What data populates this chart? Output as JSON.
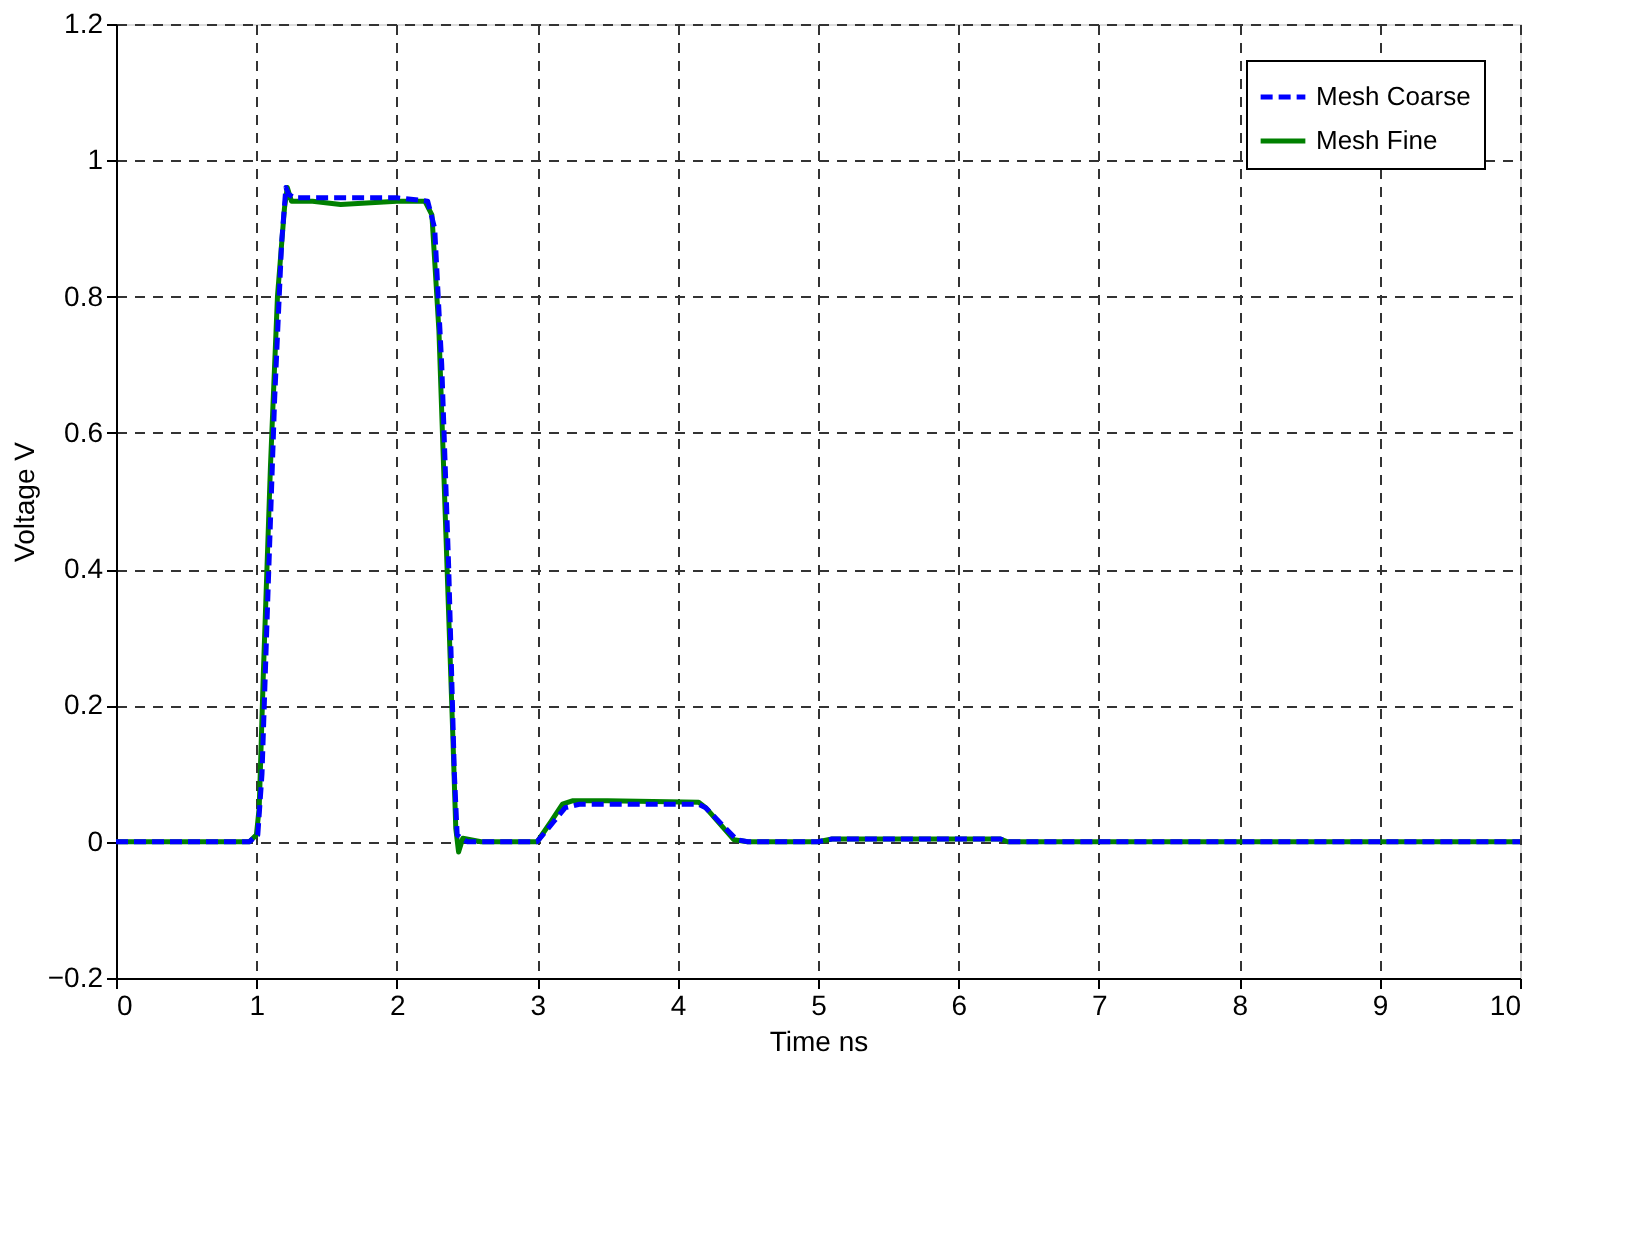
{
  "chart_data": {
    "type": "line",
    "xlabel": "Time ns",
    "ylabel": "Voltage V",
    "xlim": [
      0,
      10
    ],
    "ylim": [
      -0.2,
      1.2
    ],
    "xticks": [
      0,
      1,
      2,
      3,
      4,
      5,
      6,
      7,
      8,
      9,
      10
    ],
    "yticks": [
      -0.2,
      0,
      0.2,
      0.4,
      0.6,
      0.8,
      1,
      1.2
    ],
    "grid": true,
    "legend": "top right",
    "series": [
      {
        "name": "Mesh Coarse",
        "color": "#0000ff",
        "line_style": "dashed",
        "x": [
          0,
          0.95,
          1.01,
          1.04,
          1.08,
          1.13,
          1.18,
          1.21,
          1.23,
          1.27,
          1.5,
          2.0,
          2.22,
          2.27,
          2.32,
          2.37,
          2.41,
          2.43,
          2.46,
          2.5,
          3.0,
          3.12,
          3.2,
          3.3,
          3.6,
          4.15,
          4.2,
          4.42,
          4.5,
          5.0,
          5.1,
          6.3,
          6.35,
          10
        ],
        "values": [
          0,
          0,
          0.01,
          0.1,
          0.35,
          0.65,
          0.88,
          0.96,
          0.95,
          0.945,
          0.945,
          0.945,
          0.94,
          0.9,
          0.7,
          0.4,
          0.1,
          0.01,
          0.005,
          0,
          0,
          0.03,
          0.05,
          0.055,
          0.055,
          0.055,
          0.05,
          0.003,
          0,
          0,
          0.004,
          0.004,
          0,
          0
        ]
      },
      {
        "name": "Mesh Fine",
        "color": "#008000",
        "line_style": "solid",
        "x": [
          0,
          0.95,
          1.0,
          1.02,
          1.05,
          1.1,
          1.15,
          1.2,
          1.22,
          1.25,
          1.4,
          1.6,
          2.0,
          2.2,
          2.25,
          2.3,
          2.35,
          2.4,
          2.42,
          2.44,
          2.47,
          2.6,
          3.0,
          3.1,
          3.18,
          3.25,
          3.5,
          4.15,
          4.2,
          4.4,
          4.5,
          5.0,
          5.1,
          6.3,
          6.35,
          10
        ],
        "values": [
          0,
          0,
          0.01,
          0.05,
          0.25,
          0.55,
          0.8,
          0.93,
          0.96,
          0.94,
          0.94,
          0.935,
          0.94,
          0.94,
          0.92,
          0.75,
          0.45,
          0.15,
          0.02,
          -0.015,
          0.005,
          0,
          0,
          0.03,
          0.055,
          0.06,
          0.06,
          0.058,
          0.05,
          0.003,
          0,
          0,
          0.004,
          0.004,
          0,
          0
        ]
      }
    ]
  }
}
